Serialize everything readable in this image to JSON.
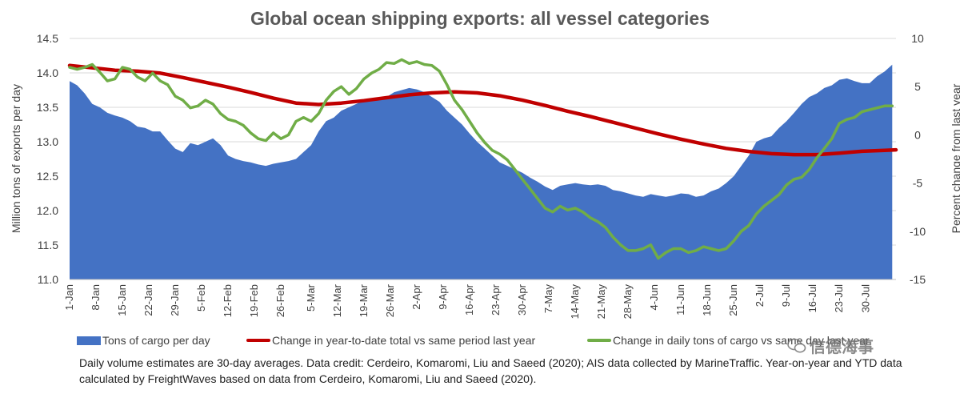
{
  "chart_data": {
    "type": "area",
    "title": "Global ocean shipping exports: all vessel categories",
    "ylabel_left": "Million tons of exports per day",
    "ylabel_right": "Percent change from last year",
    "ylim_left": [
      11.0,
      14.5
    ],
    "ylim_right": [
      -15,
      10
    ],
    "yticks_left": [
      "11.0",
      "11.5",
      "12.0",
      "12.5",
      "13.0",
      "13.5",
      "14.0",
      "14.5"
    ],
    "yticks_right": [
      "-15",
      "-10",
      "-5",
      "0",
      "5",
      "10"
    ],
    "grid": true,
    "legend_position": "bottom",
    "x_day_max": 219,
    "xticks": [
      {
        "day": 0,
        "label": "1-Jan"
      },
      {
        "day": 7,
        "label": "8-Jan"
      },
      {
        "day": 14,
        "label": "15-Jan"
      },
      {
        "day": 21,
        "label": "22-Jan"
      },
      {
        "day": 28,
        "label": "29-Jan"
      },
      {
        "day": 35,
        "label": "5-Feb"
      },
      {
        "day": 42,
        "label": "12-Feb"
      },
      {
        "day": 49,
        "label": "19-Feb"
      },
      {
        "day": 56,
        "label": "26-Feb"
      },
      {
        "day": 64,
        "label": "5-Mar"
      },
      {
        "day": 71,
        "label": "12-Mar"
      },
      {
        "day": 78,
        "label": "19-Mar"
      },
      {
        "day": 85,
        "label": "26-Mar"
      },
      {
        "day": 92,
        "label": "2-Apr"
      },
      {
        "day": 99,
        "label": "9-Apr"
      },
      {
        "day": 106,
        "label": "16-Apr"
      },
      {
        "day": 113,
        "label": "23-Apr"
      },
      {
        "day": 120,
        "label": "30-Apr"
      },
      {
        "day": 127,
        "label": "7-May"
      },
      {
        "day": 134,
        "label": "14-May"
      },
      {
        "day": 141,
        "label": "21-May"
      },
      {
        "day": 148,
        "label": "28-May"
      },
      {
        "day": 155,
        "label": "4-Jun"
      },
      {
        "day": 162,
        "label": "11-Jun"
      },
      {
        "day": 169,
        "label": "18-Jun"
      },
      {
        "day": 176,
        "label": "25-Jun"
      },
      {
        "day": 183,
        "label": "2-Jul"
      },
      {
        "day": 190,
        "label": "9-Jul"
      },
      {
        "day": 197,
        "label": "16-Jul"
      },
      {
        "day": 204,
        "label": "23-Jul"
      },
      {
        "day": 211,
        "label": "30-Jul"
      }
    ],
    "series": [
      {
        "name": "Tons of cargo per day",
        "kind": "area",
        "axis": "left",
        "color": "#4472c4",
        "x": [
          0,
          2,
          4,
          6,
          8,
          10,
          12,
          14,
          16,
          18,
          20,
          22,
          24,
          26,
          28,
          30,
          32,
          34,
          36,
          38,
          40,
          42,
          44,
          46,
          48,
          50,
          52,
          54,
          56,
          58,
          60,
          62,
          64,
          66,
          68,
          70,
          72,
          74,
          76,
          78,
          80,
          82,
          84,
          86,
          88,
          90,
          92,
          94,
          96,
          98,
          100,
          102,
          104,
          106,
          108,
          110,
          112,
          114,
          116,
          118,
          120,
          122,
          124,
          126,
          128,
          130,
          132,
          134,
          136,
          138,
          140,
          142,
          144,
          146,
          148,
          150,
          152,
          154,
          156,
          158,
          160,
          162,
          164,
          166,
          168,
          170,
          172,
          174,
          176,
          178,
          180,
          182,
          184,
          186,
          188,
          190,
          192,
          194,
          196,
          198,
          200,
          202,
          204,
          206,
          208,
          210,
          212,
          214,
          216,
          218
        ],
        "values": [
          13.88,
          13.82,
          13.7,
          13.55,
          13.5,
          13.42,
          13.38,
          13.35,
          13.3,
          13.22,
          13.2,
          13.15,
          13.15,
          13.02,
          12.9,
          12.85,
          12.98,
          12.95,
          13.0,
          13.05,
          12.95,
          12.8,
          12.75,
          12.72,
          12.7,
          12.67,
          12.65,
          12.68,
          12.7,
          12.72,
          12.75,
          12.85,
          12.95,
          13.15,
          13.3,
          13.35,
          13.45,
          13.5,
          13.55,
          13.6,
          13.62,
          13.6,
          13.65,
          13.72,
          13.75,
          13.78,
          13.76,
          13.72,
          13.65,
          13.58,
          13.45,
          13.35,
          13.25,
          13.12,
          13.0,
          12.9,
          12.8,
          12.7,
          12.65,
          12.6,
          12.55,
          12.48,
          12.42,
          12.35,
          12.3,
          12.36,
          12.38,
          12.4,
          12.38,
          12.37,
          12.38,
          12.36,
          12.3,
          12.28,
          12.25,
          12.22,
          12.2,
          12.24,
          12.22,
          12.2,
          12.22,
          12.25,
          12.24,
          12.2,
          12.22,
          12.28,
          12.32,
          12.4,
          12.5,
          12.65,
          12.8,
          13.0,
          13.05,
          13.08,
          13.2,
          13.3,
          13.42,
          13.55,
          13.65,
          13.7,
          13.78,
          13.82,
          13.9,
          13.92,
          13.88,
          13.85,
          13.85,
          13.95,
          14.02,
          14.12
        ]
      },
      {
        "name": "Change in year-to-date total vs same period last year",
        "kind": "line",
        "axis": "right",
        "color": "#c00000",
        "x": [
          0,
          6,
          12,
          18,
          24,
          30,
          36,
          42,
          48,
          54,
          60,
          66,
          72,
          78,
          84,
          90,
          96,
          102,
          108,
          114,
          120,
          126,
          132,
          138,
          144,
          150,
          156,
          162,
          168,
          174,
          180,
          186,
          192,
          198,
          204,
          210,
          216,
          219
        ],
        "values": [
          7.2,
          6.95,
          6.7,
          6.6,
          6.4,
          5.95,
          5.45,
          4.95,
          4.4,
          3.8,
          3.3,
          3.15,
          3.3,
          3.55,
          3.85,
          4.15,
          4.35,
          4.45,
          4.35,
          4.05,
          3.6,
          3.05,
          2.45,
          1.9,
          1.3,
          0.7,
          0.1,
          -0.45,
          -0.95,
          -1.4,
          -1.72,
          -1.95,
          -2.05,
          -2.05,
          -1.9,
          -1.7,
          -1.6,
          -1.55
        ]
      },
      {
        "name": "Change in daily tons of cargo vs same day last year",
        "kind": "line",
        "axis": "right",
        "color": "#70ad47",
        "x": [
          0,
          2,
          4,
          6,
          8,
          10,
          12,
          14,
          16,
          18,
          20,
          22,
          24,
          26,
          28,
          30,
          32,
          34,
          36,
          38,
          40,
          42,
          44,
          46,
          48,
          50,
          52,
          54,
          56,
          58,
          60,
          62,
          64,
          66,
          68,
          70,
          72,
          74,
          76,
          78,
          80,
          82,
          84,
          86,
          88,
          90,
          92,
          94,
          96,
          98,
          100,
          102,
          104,
          106,
          108,
          110,
          112,
          114,
          116,
          118,
          120,
          122,
          124,
          126,
          128,
          130,
          132,
          134,
          136,
          138,
          140,
          142,
          144,
          146,
          148,
          150,
          152,
          154,
          156,
          158,
          160,
          162,
          164,
          166,
          168,
          170,
          172,
          174,
          176,
          178,
          180,
          182,
          184,
          186,
          188,
          190,
          192,
          194,
          196,
          198,
          200,
          202,
          204,
          206,
          208,
          210,
          212,
          214,
          216,
          218
        ],
        "values": [
          7.0,
          6.8,
          7.0,
          7.3,
          6.5,
          5.6,
          5.8,
          7.0,
          6.8,
          6.0,
          5.6,
          6.4,
          5.6,
          5.2,
          4.0,
          3.6,
          2.8,
          3.0,
          3.6,
          3.2,
          2.2,
          1.6,
          1.4,
          1.0,
          0.2,
          -0.4,
          -0.6,
          0.2,
          -0.4,
          0.0,
          1.4,
          1.8,
          1.4,
          2.2,
          3.6,
          4.5,
          5.0,
          4.2,
          4.8,
          5.8,
          6.4,
          6.8,
          7.5,
          7.4,
          7.8,
          7.4,
          7.6,
          7.3,
          7.2,
          6.6,
          5.2,
          3.6,
          2.6,
          1.4,
          0.2,
          -0.8,
          -1.6,
          -2.0,
          -2.6,
          -3.6,
          -4.6,
          -5.6,
          -6.6,
          -7.6,
          -8.0,
          -7.4,
          -7.8,
          -7.6,
          -8.0,
          -8.6,
          -9.0,
          -9.6,
          -10.6,
          -11.4,
          -12.0,
          -12.0,
          -11.8,
          -11.4,
          -12.8,
          -12.2,
          -11.8,
          -11.8,
          -12.2,
          -12.0,
          -11.6,
          -11.8,
          -12.0,
          -11.8,
          -11.0,
          -10.0,
          -9.4,
          -8.2,
          -7.4,
          -6.8,
          -6.2,
          -5.2,
          -4.6,
          -4.4,
          -3.6,
          -2.4,
          -1.4,
          -0.4,
          1.2,
          1.6,
          1.8,
          2.4,
          2.6,
          2.8,
          3.0,
          3.0
        ]
      }
    ]
  },
  "legend": {
    "area_label": "Tons of cargo per day",
    "ytd_label": "Change in year-to-date total vs same period last year",
    "daily_label": "Change in daily tons of cargo vs same day last year"
  },
  "footnote": "Daily volume estimates are 30-day averages. Data credit: Cerdeiro, Komaromi, Liu and Saeed (2020); AIS data collected by MarineTraffic. Year-on-year and YTD data calculated by FreightWaves based on data from Cerdeiro, Komaromi, Liu and Saeed (2020).",
  "watermark": "信德海事"
}
